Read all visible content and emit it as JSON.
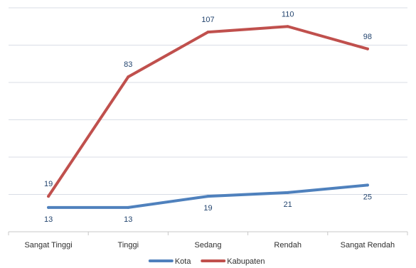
{
  "chart_data": {
    "type": "line",
    "categories": [
      "Sangat Tinggi",
      "Tinggi",
      "Sedang",
      "Rendah",
      "Sangat Rendah"
    ],
    "series": [
      {
        "name": "Kota",
        "values": [
          13,
          13,
          19,
          21,
          25
        ],
        "color": "#4f81bd",
        "label_position": "below"
      },
      {
        "name": "Kabupaten",
        "values": [
          19,
          83,
          107,
          110,
          98
        ],
        "color": "#c0504d",
        "label_position": "above"
      }
    ],
    "ylim": [
      0,
      120
    ],
    "y_gridlines": [
      0,
      20,
      40,
      60,
      80,
      100,
      120
    ],
    "grid": true,
    "show_y_tick_labels": false,
    "legend_position": "bottom-center",
    "title": "",
    "xlabel": "",
    "ylabel": "",
    "colors": {
      "grid": "#d9dde6",
      "axis": "#c8c8c8",
      "label_text": "#24456f",
      "tick_text": "#2f2f2f"
    }
  }
}
